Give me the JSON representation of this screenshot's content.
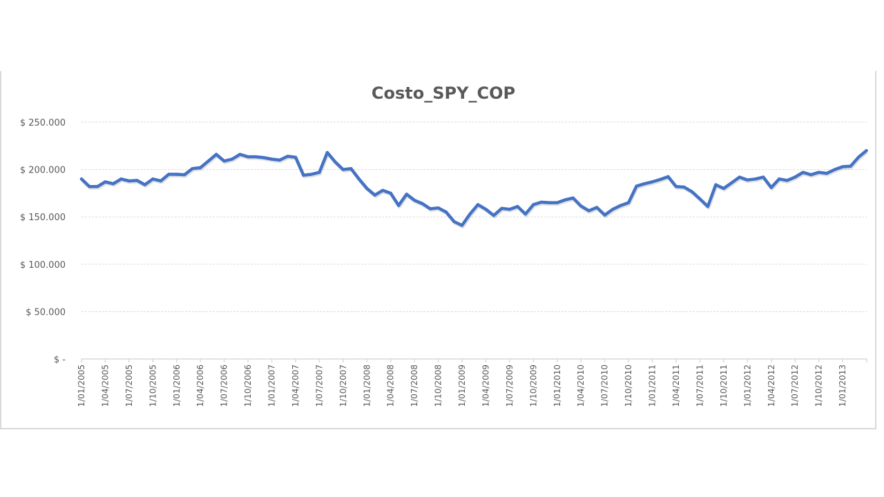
{
  "chart_data": {
    "type": "line",
    "title": "Costo_SPY_COP",
    "xlabel": "",
    "ylabel": "",
    "ylim": [
      0,
      250000
    ],
    "grid": true,
    "legend": "none",
    "line_color": "#4472c4",
    "y_ticks": [
      {
        "value": 0,
        "label": "$ -"
      },
      {
        "value": 50000,
        "label": "$ 50.000"
      },
      {
        "value": 100000,
        "label": "$ 100.000"
      },
      {
        "value": 150000,
        "label": "$ 150.000"
      },
      {
        "value": 200000,
        "label": "$ 200.000"
      },
      {
        "value": 250000,
        "label": "$ 250.000"
      }
    ],
    "x_tick_labels": [
      "1/01/2005",
      "1/04/2005",
      "1/07/2005",
      "1/10/2005",
      "1/01/2006",
      "1/04/2006",
      "1/07/2006",
      "1/10/2006",
      "1/01/2007",
      "1/04/2007",
      "1/07/2007",
      "1/10/2007",
      "1/01/2008",
      "1/04/2008",
      "1/07/2008",
      "1/10/2008",
      "1/01/2009",
      "1/04/2009",
      "1/07/2009",
      "1/10/2009",
      "1/01/2010",
      "1/04/2010",
      "1/07/2010",
      "1/10/2010",
      "1/01/2011",
      "1/04/2011",
      "1/07/2011",
      "1/10/2011",
      "1/01/2012",
      "1/04/2012",
      "1/07/2012",
      "1/10/2012",
      "1/01/2013"
    ],
    "x_start": "2005-01",
    "x_interval": "monthly",
    "series": [
      {
        "name": "Costo_SPY_COP",
        "values": [
          190000,
          182000,
          182000,
          187000,
          185000,
          190000,
          188000,
          188500,
          184000,
          190000,
          188000,
          195000,
          195000,
          194500,
          201000,
          202000,
          209000,
          216000,
          209000,
          211000,
          216000,
          213500,
          213500,
          212500,
          211000,
          210000,
          214000,
          213000,
          194000,
          195000,
          197000,
          218000,
          208000,
          200000,
          201000,
          190000,
          180000,
          173000,
          178000,
          175000,
          162000,
          174000,
          167500,
          164000,
          158500,
          159500,
          155000,
          145000,
          141000,
          153000,
          163000,
          158000,
          151500,
          159000,
          158000,
          161000,
          153000,
          163000,
          165500,
          165000,
          165000,
          168000,
          170000,
          161500,
          156500,
          160000,
          152000,
          158000,
          162000,
          165000,
          182500,
          185000,
          187000,
          189500,
          192500,
          182000,
          181500,
          176500,
          169000,
          161000,
          184000,
          180000,
          186000,
          192000,
          189000,
          190000,
          192000,
          181000,
          190000,
          188500,
          192000,
          197000,
          194500,
          197000,
          196000,
          200000,
          203000,
          203500,
          213000,
          220000
        ]
      }
    ]
  }
}
